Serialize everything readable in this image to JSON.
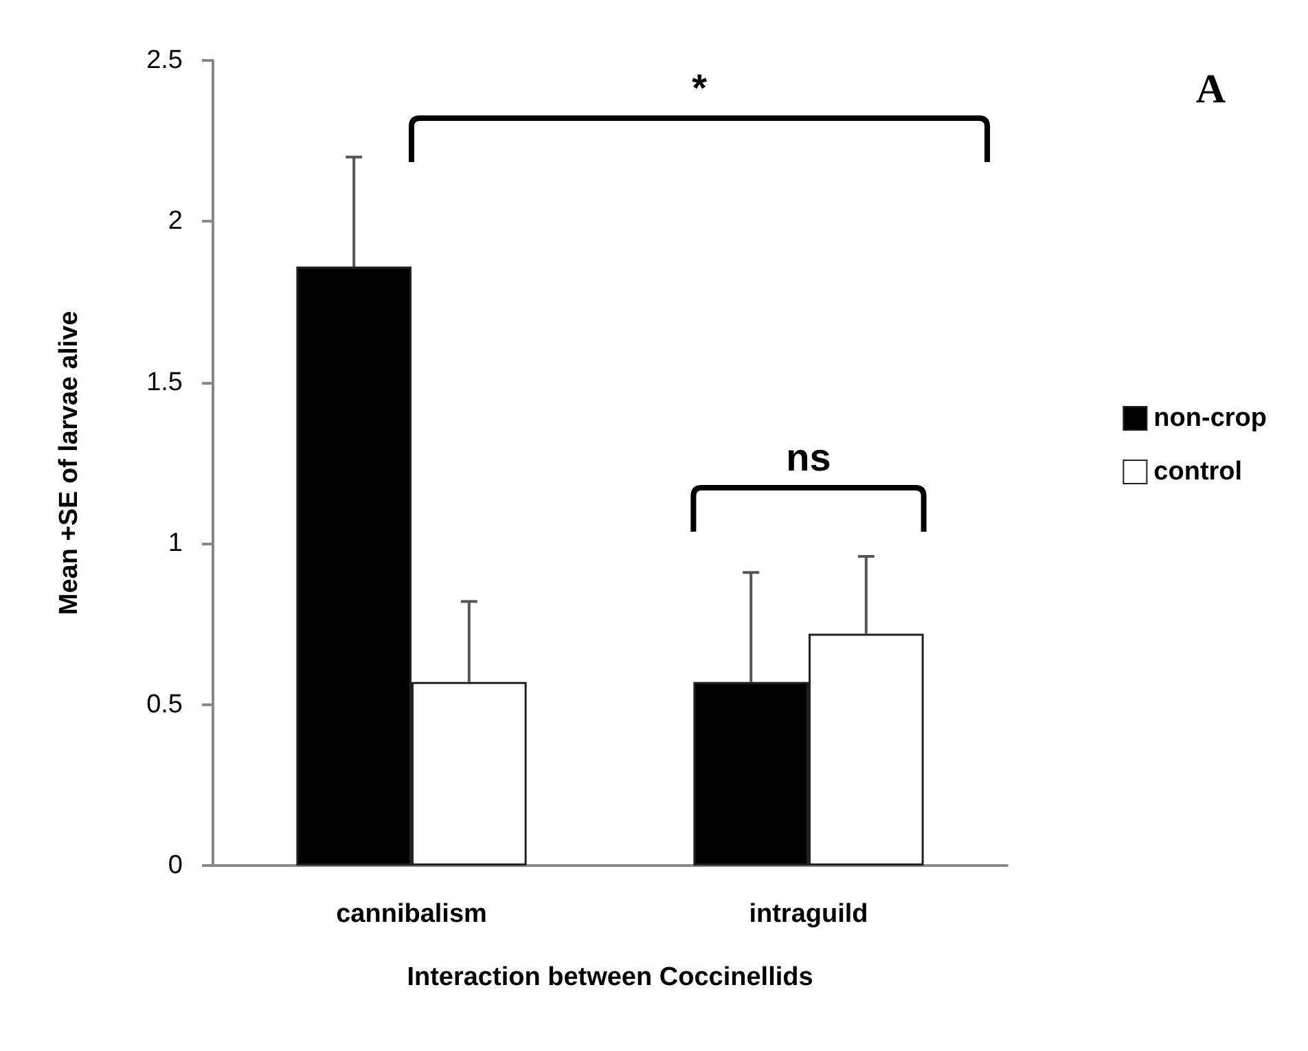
{
  "chart_data": {
    "type": "bar",
    "xlabel": "Interaction between Coccinellids",
    "ylabel": "Mean +SE of larvae alive",
    "categories": [
      "cannibalism",
      "intraguild"
    ],
    "series": [
      {
        "name": "non-crop",
        "color": "#000000",
        "values": [
          1.86,
          0.57
        ],
        "errors": [
          [
            1.86,
            2.2
          ],
          [
            0.57,
            0.91
          ]
        ]
      },
      {
        "name": "control",
        "color": "#ffffff",
        "values": [
          0.57,
          0.72
        ],
        "errors": [
          [
            0.57,
            0.82
          ],
          [
            0.72,
            0.96
          ]
        ]
      }
    ],
    "ylim": [
      0,
      2.5
    ],
    "yticks": [
      0,
      0.5,
      1,
      1.5,
      2,
      2.5
    ],
    "grid": false,
    "legend": "right",
    "annotations": [
      "*",
      "ns",
      "A"
    ]
  }
}
